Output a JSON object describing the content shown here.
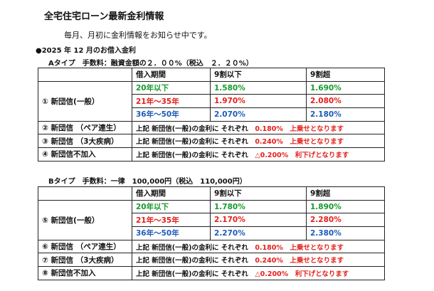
{
  "title": "全宅住宅ローン最新金利情報",
  "subtitle": "毎月、月初に金利情報をお知らせ中です。",
  "rate_heading": "●2025 年 12 月のお借入金利",
  "period_colors": [
    "#169a2c",
    "#e3201b",
    "#1d5cb8"
  ],
  "tables": [
    {
      "caption": "Aタイプ　手数料：融資金額の２．００%（税込　２．２０%）",
      "header": [
        "借入期間",
        "9割以下",
        "9割超"
      ],
      "main_label": "① 新団信(一般）",
      "rows": [
        [
          "20年以下",
          "1.580%",
          "1.690%"
        ],
        [
          "21年～35年",
          "1.970%",
          "2.080%"
        ],
        [
          "36年～50年",
          "2.070%",
          "2.180%"
        ]
      ],
      "notes": [
        {
          "label": "② 新団信 （ペア連生）",
          "text": "上記 新団信(一般)の金利に それぞれ",
          "amount": "0.180%",
          "result": "上乗せとなります"
        },
        {
          "label": "③ 新団信 （3大疾病）",
          "text": "上記 新団信(一般)の金利に それぞれ",
          "amount": "0.240%",
          "result": "上乗せとなります"
        },
        {
          "label": "④ 新団信不加入",
          "text": "上記 新団信(一般)の金利に それぞれ",
          "amount": "△0.200%",
          "result": "利下げとなります"
        }
      ]
    },
    {
      "caption": "Bタイプ　手数料：一律　100,000円（税込　110,000円）",
      "header": [
        "借入期間",
        "9割以下",
        "9割超"
      ],
      "main_label": "⑤ 新団信(一般）",
      "rows": [
        [
          "20年以下",
          "1.780%",
          "1.890%"
        ],
        [
          "21年～35年",
          "2.170%",
          "2.280%"
        ],
        [
          "36年～50年",
          "2.270%",
          "2.380%"
        ]
      ],
      "notes": [
        {
          "label": "⑥ 新団信 （ペア連生）",
          "text": "上記 新団信(一般)の金利に それぞれ",
          "amount": "0.180%",
          "result": "上乗せとなります"
        },
        {
          "label": "⑦ 新団信 （3大疾病）",
          "text": "上記 新団信(一般)の金利に それぞれ",
          "amount": "0.240%",
          "result": "上乗せとなります"
        },
        {
          "label": "⑧ 新団信不加入",
          "text": "上記 新団信(一般)の金利に それぞれ",
          "amount": "△0.200%",
          "result": "利下げとなります"
        }
      ]
    }
  ]
}
